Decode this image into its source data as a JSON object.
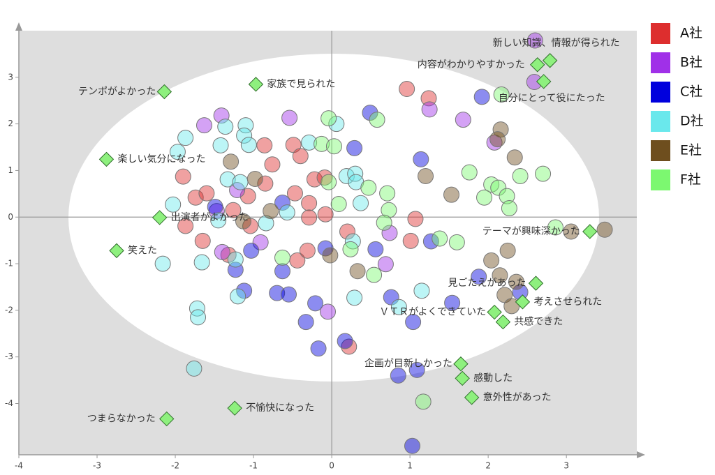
{
  "chart_data": {
    "type": "scatter",
    "xlim": [
      -4,
      3.9
    ],
    "ylim": [
      -5.1,
      4
    ],
    "xticks": [
      -4,
      -3,
      -2,
      -1,
      0,
      1,
      2,
      3
    ],
    "yticks": [
      -4,
      -3,
      -2,
      -1,
      0,
      1,
      2,
      3
    ],
    "series": [
      {
        "name": "A社",
        "color": "#dd2e2e",
        "x": [
          0.96,
          1.24,
          -0.86,
          -0.49,
          -0.4,
          -0.76,
          -1.9,
          -0.85,
          -1.07,
          -1.74,
          -1.6,
          -0.47,
          -0.22,
          -0.09,
          -0.29,
          -1.26,
          -1.04,
          -1.87,
          -1.65,
          -1.32,
          -0.29,
          -0.08,
          0.2,
          1.07,
          1.01,
          -0.44,
          0.22,
          -0.31
        ],
        "values": [
          2.75,
          2.55,
          1.54,
          1.55,
          1.31,
          1.13,
          0.87,
          0.72,
          0.45,
          0.42,
          0.51,
          0.51,
          0.81,
          0.85,
          0.3,
          0.15,
          -0.19,
          -0.19,
          -0.51,
          -0.81,
          -0.01,
          0.06,
          -0.31,
          -0.04,
          -0.51,
          -0.93,
          -2.78,
          -0.72
        ]
      },
      {
        "name": "B社",
        "color": "#a030e8",
        "x": [
          2.6,
          2.59,
          1.68,
          1.25,
          -1.41,
          -1.63,
          -0.54,
          2.08,
          -1.21,
          -1.47,
          -0.91,
          0.74,
          0.69,
          -0.05,
          -1.4
        ],
        "values": [
          3.79,
          2.9,
          2.09,
          2.31,
          2.18,
          1.97,
          2.13,
          1.6,
          0.58,
          0.13,
          -0.54,
          -0.34,
          -1.01,
          -2.03,
          -0.75
        ]
      },
      {
        "name": "C社",
        "color": "#0000dd",
        "x": [
          0.49,
          1.92,
          0.29,
          1.14,
          -0.63,
          -1.49,
          1.27,
          0.56,
          -0.08,
          -1.03,
          -0.63,
          -1.23,
          -1.12,
          -0.7,
          -0.55,
          -0.21,
          -0.33,
          -0.17,
          0.17,
          0.76,
          1.54,
          1.88,
          2.41,
          1.04,
          0.85,
          1.09,
          1.03
        ],
        "values": [
          2.24,
          2.58,
          1.48,
          1.24,
          0.31,
          0.22,
          -0.52,
          -0.69,
          -0.67,
          -0.72,
          -1.16,
          -1.13,
          -1.58,
          -1.63,
          -1.66,
          -1.85,
          -2.25,
          -2.82,
          -2.66,
          -1.72,
          -1.84,
          -1.28,
          -1.61,
          -2.25,
          -3.4,
          -3.28,
          -4.91
        ]
      },
      {
        "name": "D社",
        "color": "#6ae8ec",
        "x": [
          -1.87,
          -1.97,
          -1.36,
          -1.1,
          -1.12,
          -1.42,
          -1.06,
          -0.29,
          0.06,
          -1.33,
          -1.17,
          0.19,
          0.3,
          0.31,
          -2.03,
          -1.45,
          -0.84,
          -0.57,
          0.37,
          0.27,
          -1.66,
          -2.16,
          -1.23,
          -1.72,
          -1.71,
          -1.2,
          0.29,
          1.15,
          0.86,
          -1.76
        ],
        "values": [
          1.7,
          1.4,
          1.94,
          1.97,
          1.75,
          1.54,
          1.55,
          1.6,
          2.0,
          0.81,
          0.75,
          0.88,
          0.93,
          0.75,
          0.27,
          -0.07,
          -0.13,
          0.1,
          0.3,
          -0.52,
          -0.97,
          -1.0,
          -0.91,
          -1.96,
          -2.15,
          -1.7,
          -1.73,
          -1.58,
          -1.93,
          -3.25
        ]
      },
      {
        "name": "E社",
        "color": "#6e4e1e",
        "x": [
          2.16,
          2.12,
          2.34,
          1.2,
          1.53,
          3.49,
          3.06,
          2.25,
          2.04,
          2.15,
          2.36,
          2.21,
          2.3,
          0.33,
          -0.02,
          -1.29,
          -0.98,
          -0.78,
          -1.13
        ],
        "values": [
          1.88,
          1.67,
          1.28,
          0.88,
          0.48,
          -0.27,
          -0.31,
          -0.72,
          -0.93,
          -1.25,
          -1.39,
          -1.67,
          -1.91,
          -1.16,
          -0.82,
          1.19,
          0.82,
          0.13,
          -0.09
        ]
      },
      {
        "name": "F社",
        "color": "#7cf870",
        "x": [
          -0.04,
          0.58,
          -0.13,
          0.03,
          1.76,
          2.04,
          2.13,
          2.41,
          2.7,
          1.95,
          2.24,
          2.27,
          0.47,
          0.71,
          0.73,
          0.67,
          -0.04,
          0.09,
          1.38,
          1.6,
          2.86,
          0.24,
          -0.63,
          1.17,
          2.17,
          0.54
        ],
        "values": [
          2.12,
          2.09,
          1.57,
          1.52,
          0.96,
          0.7,
          0.63,
          0.88,
          0.93,
          0.42,
          0.45,
          0.19,
          0.63,
          0.51,
          0.15,
          -0.12,
          0.75,
          0.28,
          -0.46,
          -0.54,
          -0.22,
          -0.69,
          -0.87,
          -3.96,
          2.63,
          -1.24
        ]
      }
    ],
    "annotations": [
      {
        "text": "新しい知識、情報が得られた",
        "x": 2.79,
        "y": 3.36
      },
      {
        "text": "内容がわかりやすかった",
        "x": 2.63,
        "y": 3.27
      },
      {
        "text": "自分にとって役にたった",
        "x": 2.71,
        "y": 2.91
      },
      {
        "text": "テンポがよかった",
        "x": -2.14,
        "y": 2.69
      },
      {
        "text": "家族で見られた",
        "x": -0.97,
        "y": 2.85
      },
      {
        "text": "楽しい気分になった",
        "x": -2.88,
        "y": 1.24
      },
      {
        "text": "出演者がよかった",
        "x": -2.2,
        "y": -0.01
      },
      {
        "text": "笑えた",
        "x": -2.75,
        "y": -0.72
      },
      {
        "text": "テーマが興味深かった",
        "x": 3.3,
        "y": -0.31
      },
      {
        "text": "見ごたえがあった",
        "x": 2.61,
        "y": -1.42
      },
      {
        "text": "考えさせられた",
        "x": 2.44,
        "y": -1.82
      },
      {
        "text": "ＶＴＲがよくできていた",
        "x": 2.08,
        "y": -2.04
      },
      {
        "text": "共感できた",
        "x": 2.19,
        "y": -2.25
      },
      {
        "text": "企画が目新しかった",
        "x": 1.65,
        "y": -3.15
      },
      {
        "text": "感動した",
        "x": 1.67,
        "y": -3.46
      },
      {
        "text": "意外性があった",
        "x": 1.79,
        "y": -3.87
      },
      {
        "text": "つまらなかった",
        "x": -2.11,
        "y": -4.33
      },
      {
        "text": "不愉快になった",
        "x": -1.24,
        "y": -4.1
      }
    ],
    "annotation_color": "#8ef07e"
  }
}
